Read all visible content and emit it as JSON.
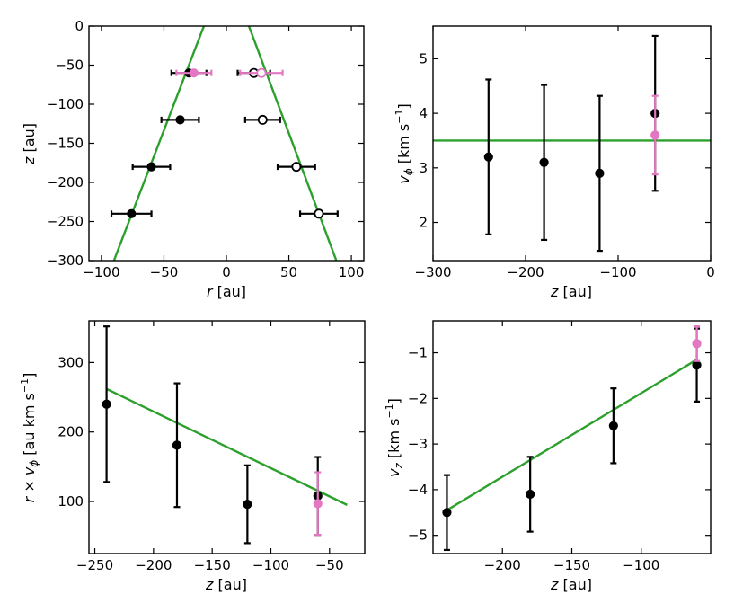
{
  "colors": {
    "black": "#000000",
    "pink": "#e377c2",
    "green": "#2ca02c",
    "hollow_fill": "#ffffff"
  },
  "chart_data": [
    {
      "id": "r_vs_z",
      "type": "scatter",
      "xlabel_main": "r",
      "xlabel_unit": " [au]",
      "ylabel_main": "z",
      "ylabel_unit": " [au]",
      "xlim": [
        -110,
        110
      ],
      "ylim": [
        -300,
        0
      ],
      "xticks": [
        -100,
        -50,
        0,
        50,
        100
      ],
      "yticks": [
        0,
        -50,
        -100,
        -150,
        -200,
        -250,
        -300
      ],
      "xtick_labels": [
        "−100",
        "−50",
        "0",
        "50",
        "100"
      ],
      "ytick_labels": [
        "0",
        "−50",
        "−100",
        "−150",
        "−200",
        "−250",
        "−300"
      ],
      "series": [
        {
          "style": "filled-black",
          "points": [
            {
              "x": -30,
              "y": -60,
              "xerr": 14
            },
            {
              "x": -37,
              "y": -120,
              "xerr": 15
            },
            {
              "x": -60,
              "y": -180,
              "xerr": 15
            },
            {
              "x": -76,
              "y": -240,
              "xerr": 16
            }
          ]
        },
        {
          "style": "hollow-black",
          "points": [
            {
              "x": 22,
              "y": -60,
              "xerr": 13
            },
            {
              "x": 29,
              "y": -120,
              "xerr": 14
            },
            {
              "x": 56,
              "y": -180,
              "xerr": 15
            },
            {
              "x": 74,
              "y": -240,
              "xerr": 15
            }
          ]
        },
        {
          "style": "filled-pink",
          "points": [
            {
              "x": -26,
              "y": -60,
              "xerr": 14
            }
          ]
        },
        {
          "style": "hollow-pink",
          "points": [
            {
              "x": 28,
              "y": -60,
              "xerr": 17
            }
          ]
        }
      ],
      "lines": [
        {
          "x": [
            -18,
            -90
          ],
          "y": [
            0,
            -300
          ]
        },
        {
          "x": [
            18,
            88
          ],
          "y": [
            0,
            -300
          ]
        }
      ]
    },
    {
      "id": "vphi_vs_z",
      "type": "scatter",
      "xlabel_main": "z",
      "xlabel_unit": " [au]",
      "ylabel_main": "v",
      "ylabel_sub": "ϕ",
      "ylabel_unit": " [km s",
      "ylabel_sup": "−1",
      "ylabel_end": "]",
      "xlim": [
        -300,
        0
      ],
      "ylim": [
        1.3,
        5.6
      ],
      "xticks": [
        -300,
        -200,
        -100,
        0
      ],
      "yticks": [
        2,
        3,
        4,
        5
      ],
      "xtick_labels": [
        "−300",
        "−200",
        "−100",
        "0"
      ],
      "ytick_labels": [
        "2",
        "3",
        "4",
        "5"
      ],
      "series": [
        {
          "style": "filled-black",
          "points": [
            {
              "x": -240,
              "y": 3.2,
              "yerr": 1.42
            },
            {
              "x": -180,
              "y": 3.1,
              "yerr": 1.42
            },
            {
              "x": -120,
              "y": 2.9,
              "yerr": 1.42
            },
            {
              "x": -60,
              "y": 4.0,
              "yerr": 1.42
            }
          ]
        },
        {
          "style": "filled-pink",
          "points": [
            {
              "x": -60,
              "y": 3.6,
              "yerr": 0.72
            }
          ]
        }
      ],
      "lines": [
        {
          "x": [
            -300,
            0
          ],
          "y": [
            3.5,
            3.5
          ]
        }
      ]
    },
    {
      "id": "rvphi_vs_z",
      "type": "scatter",
      "xlabel_main": "z",
      "xlabel_unit": " [au]",
      "ylabel_main": "r × v",
      "ylabel_sub": "ϕ",
      "ylabel_unit": " [au km s",
      "ylabel_sup": "−1",
      "ylabel_end": "]",
      "xlim": [
        -255,
        -20
      ],
      "ylim": [
        25,
        360
      ],
      "xticks": [
        -250,
        -200,
        -150,
        -100,
        -50
      ],
      "yticks": [
        100,
        200,
        300
      ],
      "xtick_labels": [
        "−250",
        "−200",
        "−150",
        "−100",
        "−50"
      ],
      "ytick_labels": [
        "100",
        "200",
        "300"
      ],
      "series": [
        {
          "style": "filled-black",
          "points": [
            {
              "x": -240,
              "y": 240,
              "yerr": 112
            },
            {
              "x": -180,
              "y": 181,
              "yerr": 89
            },
            {
              "x": -120,
              "y": 96,
              "yerr": 56
            },
            {
              "x": -60,
              "y": 108,
              "yerr": 56
            }
          ]
        },
        {
          "style": "filled-pink",
          "points": [
            {
              "x": -60,
              "y": 97,
              "yerr": 45
            }
          ]
        }
      ],
      "lines": [
        {
          "x": [
            -240,
            -35
          ],
          "y": [
            262,
            95
          ]
        }
      ]
    },
    {
      "id": "vz_vs_z",
      "type": "scatter",
      "xlabel_main": "z",
      "xlabel_unit": " [au]",
      "ylabel_main": "v",
      "ylabel_sub": "z",
      "ylabel_unit": " [km s",
      "ylabel_sup": "−1",
      "ylabel_end": "]",
      "xlim": [
        -250,
        -50
      ],
      "ylim": [
        -5.4,
        -0.3
      ],
      "xticks": [
        -200,
        -150,
        -100
      ],
      "yticks": [
        -1,
        -2,
        -3,
        -4,
        -5
      ],
      "xtick_labels": [
        "−200",
        "−150",
        "−100"
      ],
      "ytick_labels": [
        "−1",
        "−2",
        "−3",
        "−4",
        "−5"
      ],
      "series": [
        {
          "style": "filled-black",
          "points": [
            {
              "x": -240,
              "y": -4.5,
              "yerr": 0.82
            },
            {
              "x": -180,
              "y": -4.1,
              "yerr": 0.82
            },
            {
              "x": -120,
              "y": -2.6,
              "yerr": 0.82
            },
            {
              "x": -60,
              "y": -1.27,
              "yerr": 0.8
            }
          ]
        },
        {
          "style": "filled-pink",
          "points": [
            {
              "x": -60,
              "y": -0.8,
              "yerr": 0.38
            }
          ]
        }
      ],
      "lines": [
        {
          "x": [
            -240,
            -60
          ],
          "y": [
            -4.45,
            -1.15
          ]
        }
      ]
    }
  ]
}
